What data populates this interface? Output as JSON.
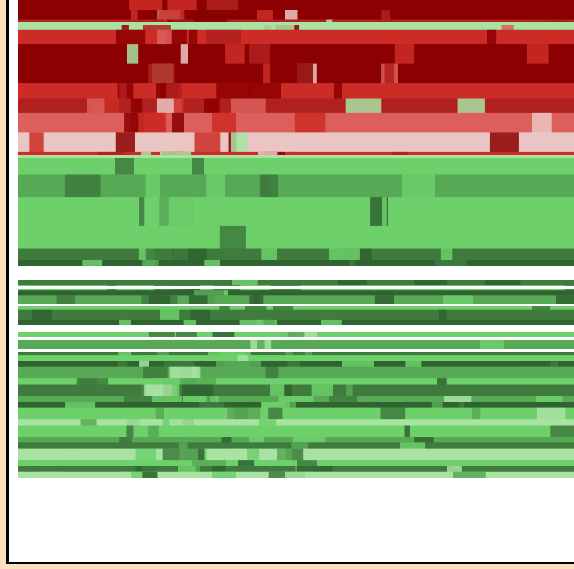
{
  "chart_data": {
    "type": "heatmap",
    "title": "",
    "xlabel": "",
    "ylabel": "",
    "grid": false,
    "legend": "none",
    "colors": {
      "background_outer": "#fbe0bd",
      "axis_frame": "#000000",
      "red_levels": [
        "#ebc5c3",
        "#dc5f5c",
        "#cd2c26",
        "#b0201e",
        "#8b0000"
      ],
      "green_levels": [
        "#a9e3a3",
        "#6dd06b",
        "#57a955",
        "#3e7b3d",
        "#2f6330"
      ],
      "separator": "#ffffff"
    },
    "band_groups": [
      {
        "name": "red-band",
        "levels": [
          "#8b0000",
          "#8b0000",
          "#b0201e",
          "#a9e3a3",
          "#cd2c26",
          "#8b0000",
          "#8b0000",
          "#cd2c26",
          "#b0201e",
          "#dc5f5c",
          "#ebc5c3",
          "#cd2c26"
        ],
        "weights": [
          2,
          2,
          1,
          1,
          3,
          4,
          4,
          3,
          3,
          4,
          4,
          1
        ]
      },
      {
        "name": "green-band-upper",
        "levels": [
          "#6dd06b",
          "#57a955",
          "#6dd06b",
          "#6dd06b",
          "#3e7b3d",
          "#2f6330"
        ],
        "weights": [
          3,
          4,
          5,
          4,
          2,
          1
        ]
      },
      {
        "name": "green-band-middle",
        "levels": [
          "#3e7b3d",
          "#6dd06b",
          "#2f6330",
          "#57a955",
          "#6dd06b",
          "#3e7b3d",
          "#2f6330"
        ],
        "weights": [
          1,
          1,
          1,
          2,
          1,
          2,
          1
        ]
      },
      {
        "name": "green-band-lower",
        "levels": [
          "#6dd06b",
          "#57a955",
          "#3e7b3d",
          "#6dd06b",
          "#2f6330",
          "#57a955",
          "#6dd06b",
          "#3e7b3d",
          "#57a955",
          "#2f6330",
          "#6dd06b",
          "#a9e3a3",
          "#6dd06b",
          "#57a955",
          "#3e7b3d",
          "#a9e3a3",
          "#6dd06b",
          "#3e7b3d",
          "#a9e3a3"
        ],
        "weights": [
          1,
          2,
          1,
          1,
          1,
          2,
          1,
          2,
          1,
          1,
          2,
          1,
          2,
          1,
          1,
          2,
          1,
          1,
          1
        ]
      }
    ]
  }
}
